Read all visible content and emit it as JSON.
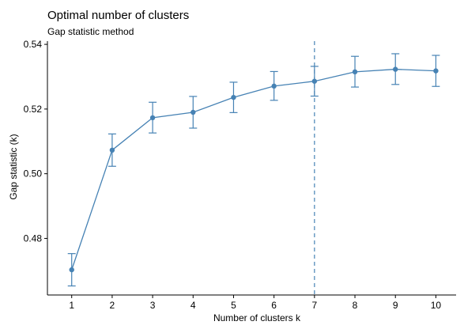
{
  "chart_data": {
    "type": "line",
    "title": "Optimal number of clusters",
    "subtitle": "Gap statistic method",
    "xlabel": "Number of clusters k",
    "ylabel": "Gap statistic (k)",
    "x": [
      1,
      2,
      3,
      4,
      5,
      6,
      7,
      8,
      9,
      10
    ],
    "series": [
      {
        "values": [
          0.4703,
          0.5073,
          0.5173,
          0.519,
          0.5236,
          0.5271,
          0.5286,
          0.5315,
          0.5323,
          0.5318
        ],
        "error_low": [
          0.4653,
          0.5023,
          0.5126,
          0.5141,
          0.5189,
          0.5227,
          0.524,
          0.5268,
          0.5276,
          0.527
        ],
        "error_high": [
          0.4753,
          0.5123,
          0.5221,
          0.5239,
          0.5283,
          0.5316,
          0.5332,
          0.5363,
          0.5371,
          0.5366
        ]
      }
    ],
    "optimal_k": 7,
    "xlim": [
      0.4,
      10.5
    ],
    "ylim": [
      0.4625,
      0.541
    ],
    "xticks": [
      1,
      2,
      3,
      4,
      5,
      6,
      7,
      8,
      9,
      10
    ],
    "yticks": [
      0.48,
      0.5,
      0.52,
      0.54
    ],
    "ytick_labels": [
      "0.48",
      "0.50",
      "0.52",
      "0.54"
    ],
    "grid": false,
    "colors": {
      "series": "#4682b4",
      "axis": "#000000",
      "text": "#000000"
    }
  }
}
